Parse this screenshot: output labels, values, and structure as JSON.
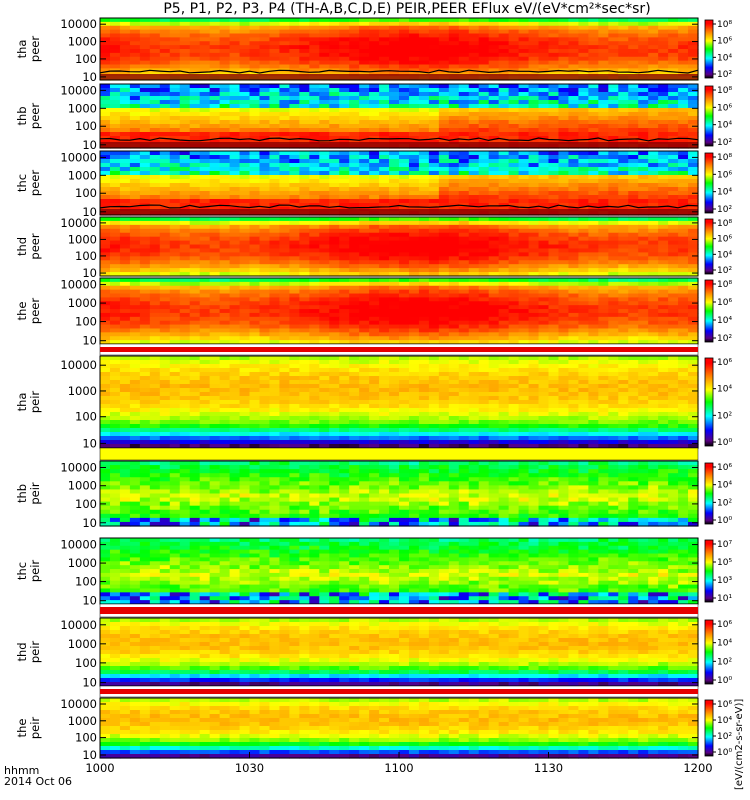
{
  "chart_data": {
    "type": "heatmap",
    "title": "P5, P1, P2, P3, P4 (TH-A,B,C,D,E) PEIR,PEER EFlux eV/(eV*cm²*sec*sr)",
    "x_ticks": [
      "1000",
      "1030",
      "1100",
      "1130",
      "1200"
    ],
    "x_range_hhmm": [
      "1000",
      "1200"
    ],
    "x_label": "hhmm",
    "date_label": "2014 Oct 06",
    "colorbar_units": "[eV/(cm2-s-sr-eV)]",
    "y_scale": "log",
    "y_ticks": [
      "10",
      "100",
      "1000",
      "10000"
    ],
    "colormap": [
      "#5a0082",
      "#0000ff",
      "#00ffff",
      "#00ff00",
      "#ffff00",
      "#ff8c00",
      "#ff0000",
      "#ffffff"
    ],
    "panels": [
      {
        "label": [
          "tha",
          "peer"
        ],
        "cbar_ticks": [
          "10⁸",
          "10⁶",
          "10⁴",
          "10²"
        ],
        "profile": "peer_hot",
        "black_line": true
      },
      {
        "label": [
          "thb",
          "peer"
        ],
        "cbar_ticks": [
          "10⁸",
          "10⁶",
          "10⁴",
          "10²"
        ],
        "profile": "peer_cool",
        "black_line": true
      },
      {
        "label": [
          "thc",
          "peer"
        ],
        "cbar_ticks": [
          "10⁸",
          "10⁶",
          "10⁴",
          "10²"
        ],
        "profile": "peer_cool",
        "black_line": true
      },
      {
        "label": [
          "thd",
          "peer"
        ],
        "cbar_ticks": [
          "10⁸",
          "10⁶",
          "10⁴",
          "10²"
        ],
        "profile": "peer_hot",
        "black_line": false
      },
      {
        "label": [
          "the",
          "peer"
        ],
        "cbar_ticks": [
          "10⁸",
          "10⁶",
          "10⁴",
          "10²"
        ],
        "profile": "peer_hot",
        "black_line": false
      },
      {
        "label": [
          "tha",
          "peir"
        ],
        "cbar_ticks": [
          "10⁶",
          "10⁴",
          "10²",
          "10⁰"
        ],
        "profile": "peir_warm",
        "black_line": false
      },
      {
        "label": [
          "thb",
          "peir"
        ],
        "cbar_ticks": [
          "10⁶",
          "10⁴",
          "10²",
          "10⁰"
        ],
        "profile": "peir_cool",
        "black_line": false
      },
      {
        "label": [
          "thc",
          "peir"
        ],
        "cbar_ticks": [
          "10⁷",
          "10⁵",
          "10³",
          "10¹"
        ],
        "profile": "peir_cool",
        "black_line": false
      },
      {
        "label": [
          "thd",
          "peir"
        ],
        "cbar_ticks": [
          "10⁶",
          "10⁴",
          "10²",
          "10⁰"
        ],
        "profile": "peir_warm",
        "black_line": false
      },
      {
        "label": [
          "the",
          "peir"
        ],
        "cbar_ticks": [
          "10⁶",
          "10⁴",
          "10²",
          "10⁰"
        ],
        "profile": "peir_warm",
        "black_line": false
      }
    ]
  }
}
